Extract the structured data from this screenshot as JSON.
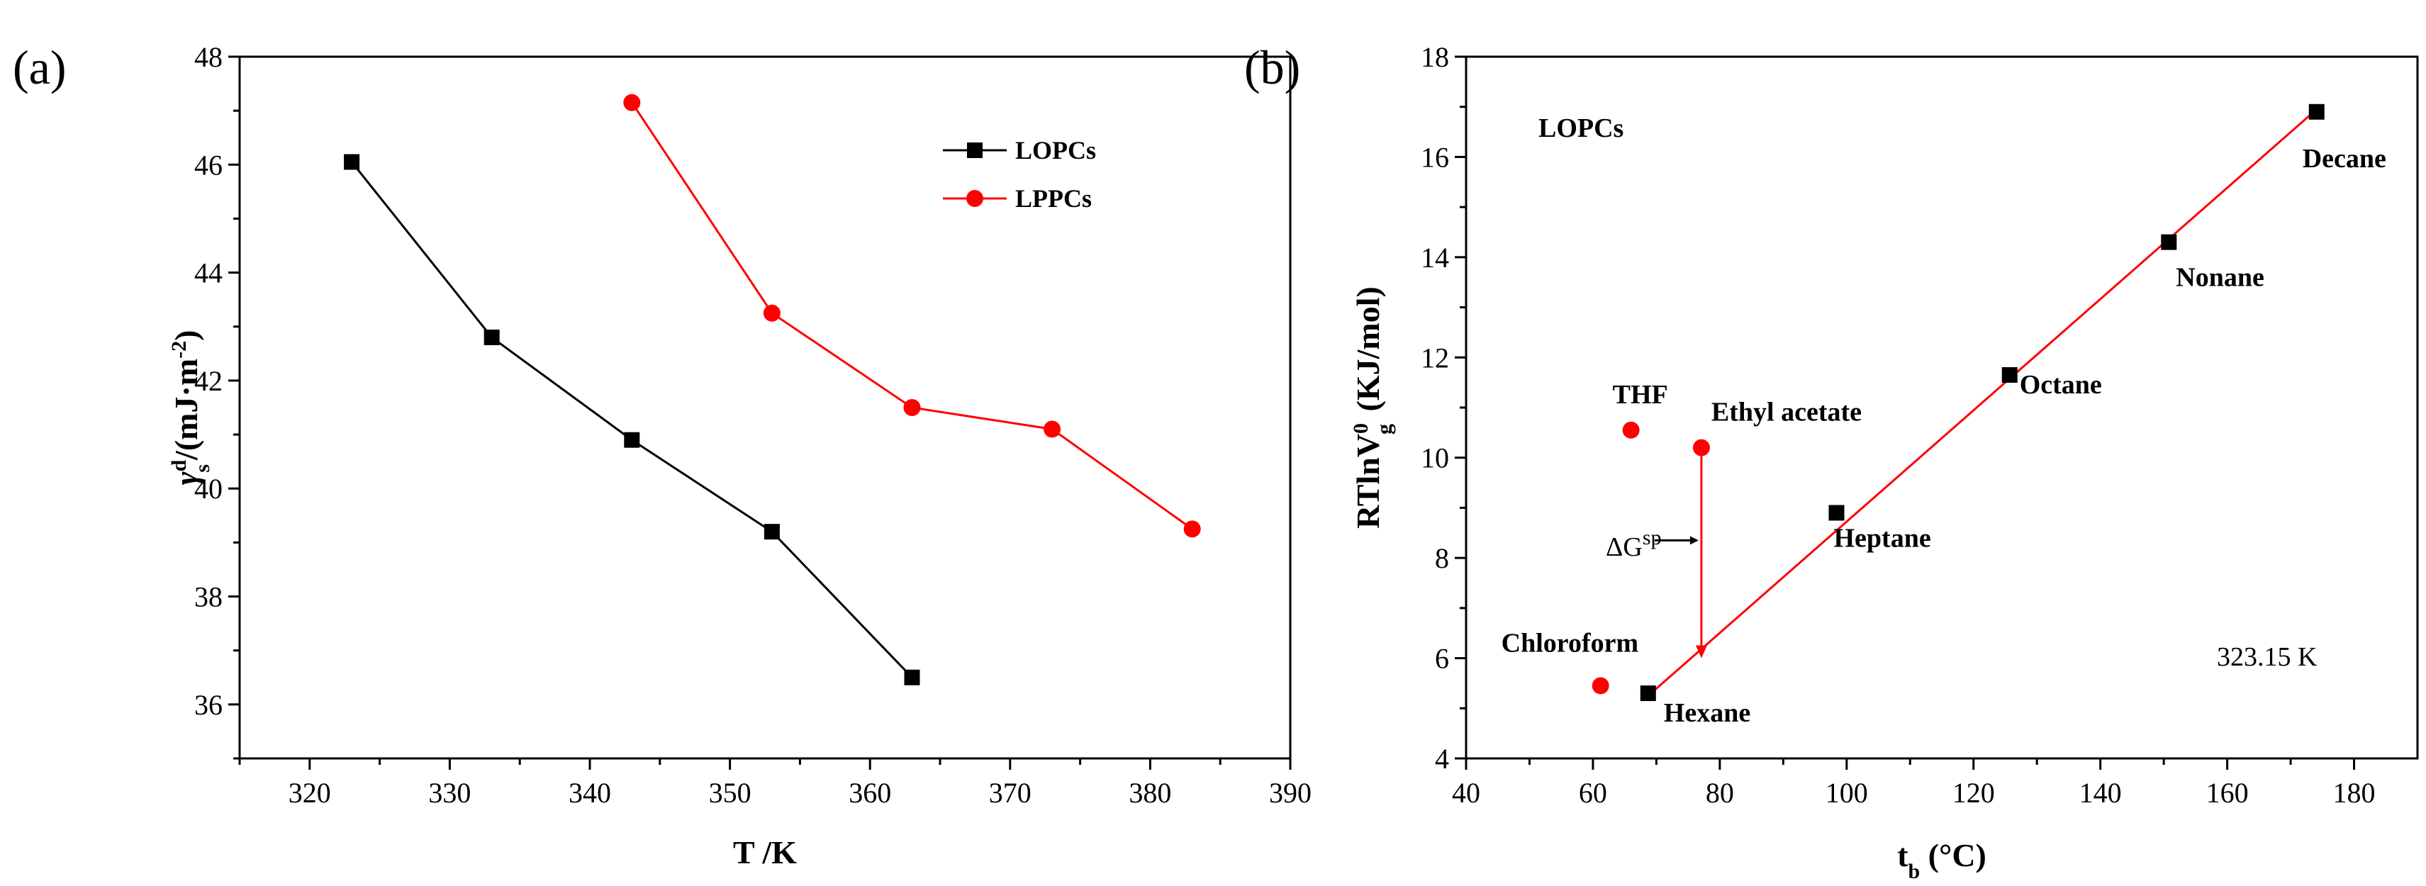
{
  "chart_data": [
    {
      "panel_label": "(a)",
      "type": "line",
      "xlabel": "T /K",
      "ylabel_parts": {
        "base": "γ",
        "sup": "d",
        "sub": "s",
        "rest": "/(mJ·m",
        "exp": "-2",
        "close": ")"
      },
      "xlim": [
        315,
        390
      ],
      "ylim": [
        35,
        48
      ],
      "xticks": [
        320,
        330,
        340,
        350,
        360,
        370,
        380,
        390
      ],
      "yticks": [
        36,
        38,
        40,
        42,
        44,
        46,
        48
      ],
      "legend_position": "top-right",
      "series": [
        {
          "name": "LOPCs",
          "color": "#000000",
          "marker": "square",
          "x": [
            323,
            333,
            343,
            353,
            363
          ],
          "y": [
            46.05,
            42.8,
            40.9,
            39.2,
            36.5
          ]
        },
        {
          "name": "LPPCs",
          "color": "#ff0000",
          "marker": "circle",
          "x": [
            343,
            353,
            363,
            373,
            383
          ],
          "y": [
            47.15,
            43.25,
            41.5,
            41.1,
            39.25
          ]
        }
      ]
    },
    {
      "panel_label": "(b)",
      "type": "scatter",
      "xlabel_parts": {
        "base": "t",
        "sub": "b",
        "rest": " (°C)"
      },
      "ylabel_parts": {
        "base": "RTlnV",
        "sup": "0",
        "sub": "g",
        "rest": " (KJ/mol)"
      },
      "xlim": [
        40,
        190
      ],
      "ylim": [
        4,
        18
      ],
      "xticks": [
        40,
        60,
        80,
        100,
        120,
        140,
        160,
        180
      ],
      "yticks": [
        4,
        6,
        8,
        10,
        12,
        14,
        16,
        18
      ],
      "panel_title": "LOPCs",
      "temperature_label": "323.15 K",
      "alkanes": {
        "color": "#000000",
        "points": [
          {
            "name": "Hexane",
            "x": 68.7,
            "y": 5.3
          },
          {
            "name": "Heptane",
            "x": 98.4,
            "y": 8.9
          },
          {
            "name": "Octane",
            "x": 125.7,
            "y": 11.65
          },
          {
            "name": "Nonane",
            "x": 150.8,
            "y": 14.3
          },
          {
            "name": "Decane",
            "x": 174.1,
            "y": 16.9
          }
        ]
      },
      "polar_probes": {
        "color": "#ff0000",
        "points": [
          {
            "name": "THF",
            "x": 66,
            "y": 10.55
          },
          {
            "name": "Ethyl acetate",
            "x": 77.1,
            "y": 10.2
          },
          {
            "name": "Chloroform",
            "x": 61.2,
            "y": 5.45
          }
        ]
      },
      "fit_line": {
        "color": "#ff0000",
        "x": [
          68.7,
          174.1
        ],
        "y": [
          5.25,
          16.95
        ]
      },
      "delta_g": {
        "label_base": "ΔG",
        "label_sup": "sp",
        "x": 77.1,
        "y_from": 10.2,
        "y_to": 6.0,
        "arrow_y": 8.35
      }
    }
  ]
}
